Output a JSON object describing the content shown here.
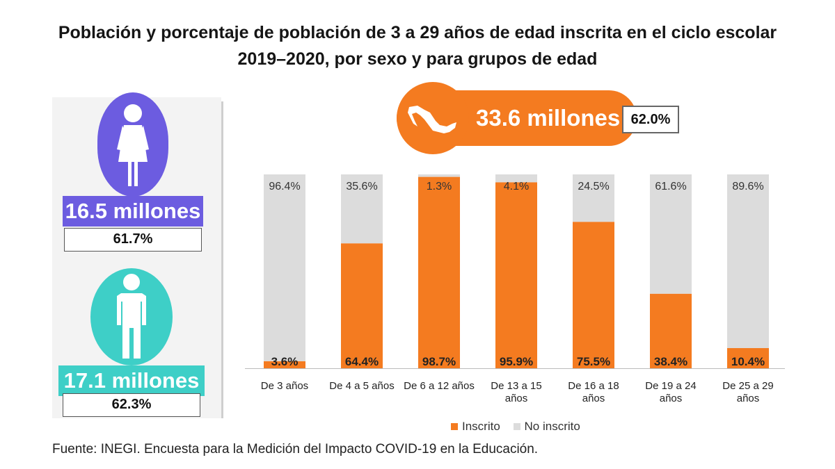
{
  "title": {
    "line1": "Población y porcentaje de población de 3 a 29 años de edad inscrita en el ciclo escolar",
    "line2": "2019–2020, por sexo y para grupos de edad"
  },
  "total": {
    "value": "33.6 millones",
    "percent": "62.0%",
    "icon": "mexico-map-icon"
  },
  "women": {
    "value": "16.5 millones",
    "percent": "61.7%",
    "icon": "woman-icon"
  },
  "men": {
    "value": "17.1 millones",
    "percent": "62.3%",
    "icon": "man-icon"
  },
  "colors": {
    "inscrito": "#f47b20",
    "no_inscrito": "#dcdcdc",
    "women": "#6c5ce0",
    "men": "#3ecfc7"
  },
  "chart_data": {
    "type": "bar",
    "stacked": true,
    "title": "Población y porcentaje de población de 3 a 29 años de edad inscrita en el ciclo escolar 2019–2020, por sexo y para grupos de edad",
    "categories": [
      [
        "De 3 años"
      ],
      [
        "De 4 a 5 años"
      ],
      [
        "De 6 a 12 años"
      ],
      [
        "De 13 a 15",
        "años"
      ],
      [
        "De 16 a 18",
        "años"
      ],
      [
        "De 19 a 24",
        "años"
      ],
      [
        "De 25 a 29",
        "años"
      ]
    ],
    "series": [
      {
        "name": "Inscrito",
        "values": [
          3.6,
          64.4,
          98.7,
          95.9,
          75.5,
          38.4,
          10.4
        ],
        "labels": [
          "3.6%",
          "64.4%",
          "98.7%",
          "95.9%",
          "75.5%",
          "38.4%",
          "10.4%"
        ]
      },
      {
        "name": "No inscrito",
        "values": [
          96.4,
          35.6,
          1.3,
          4.1,
          24.5,
          61.6,
          89.6
        ],
        "labels": [
          "96.4%",
          "35.6%",
          "1.3%",
          "4.1%",
          "24.5%",
          "61.6%",
          "89.6%"
        ]
      }
    ],
    "ylim": [
      0,
      100
    ],
    "legend": [
      "Inscrito",
      "No inscrito"
    ],
    "legend_position": "bottom"
  },
  "source": "Fuente: INEGI. Encuesta para la Medición del Impacto COVID-19 en la Educación."
}
